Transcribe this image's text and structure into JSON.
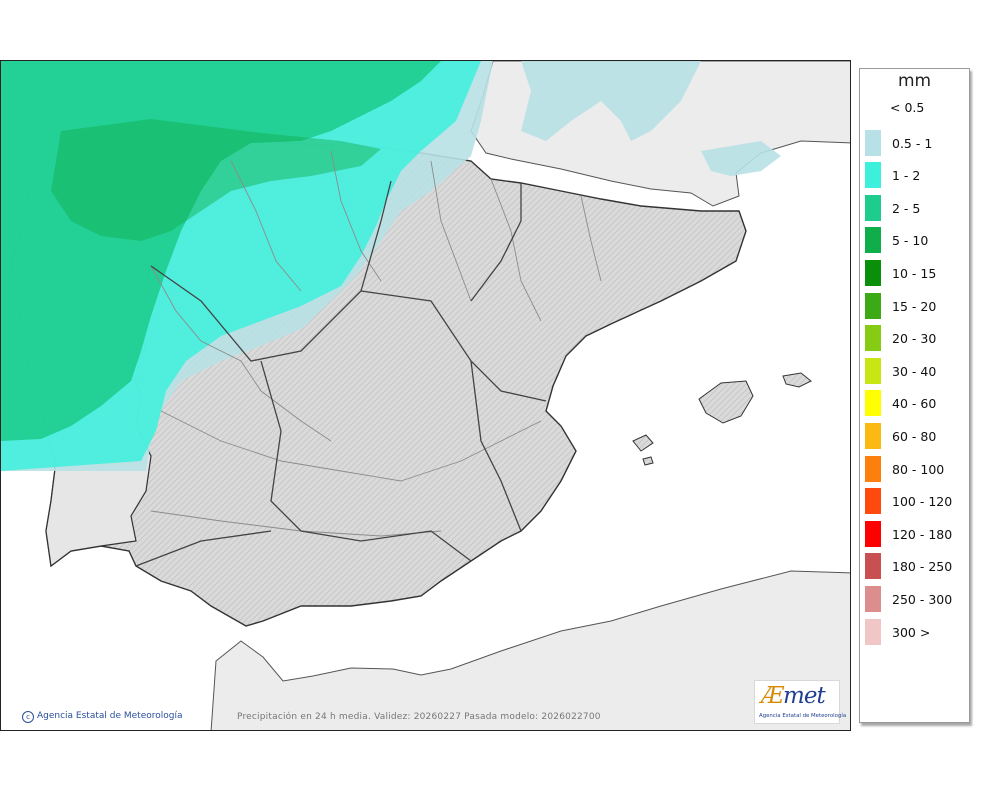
{
  "map": {
    "footer": "Precipitación en 24 h media. Validez: 20260227 Pasada modelo: 2026022700",
    "copyright": "Agencia Estatal de Meteorología",
    "copyright_icon": "copyright-icon",
    "logo_main_a": "Æ",
    "logo_main_b": "met",
    "logo_sub": "Agencia Estatal de Meteorología",
    "colors": {
      "sea": "#ffffff",
      "land_foreign": "#ececec",
      "land_spain": "#dcdcdc",
      "border": "#444444",
      "region_line": "#8c8c8c"
    }
  },
  "legend": {
    "unit": "mm",
    "classes": [
      {
        "label": "< 0.5",
        "color": "#ffffff"
      },
      {
        "label": "0.5 - 1",
        "color": "#b7e1e6"
      },
      {
        "label": "1 - 2",
        "color": "#3cf0dc"
      },
      {
        "label": "2 - 5",
        "color": "#1ecc8e"
      },
      {
        "label": "5 - 10",
        "color": "#0fae4a"
      },
      {
        "label": "10 - 15",
        "color": "#0a8f0a"
      },
      {
        "label": "15 - 20",
        "color": "#3caa16"
      },
      {
        "label": "20 - 30",
        "color": "#86cc14"
      },
      {
        "label": "30 - 40",
        "color": "#c8e614"
      },
      {
        "label": "40 - 60",
        "color": "#ffff00"
      },
      {
        "label": "60 - 80",
        "color": "#fdb913"
      },
      {
        "label": "80 - 100",
        "color": "#fd7f0e"
      },
      {
        "label": "100 - 120",
        "color": "#fe4a0c"
      },
      {
        "label": "120 - 180",
        "color": "#fe0000"
      },
      {
        "label": "180 - 250",
        "color": "#c85050"
      },
      {
        "label": "250 - 300",
        "color": "#dc8e8e"
      },
      {
        "label": "300 >",
        "color": "#f0c6c6"
      }
    ]
  }
}
